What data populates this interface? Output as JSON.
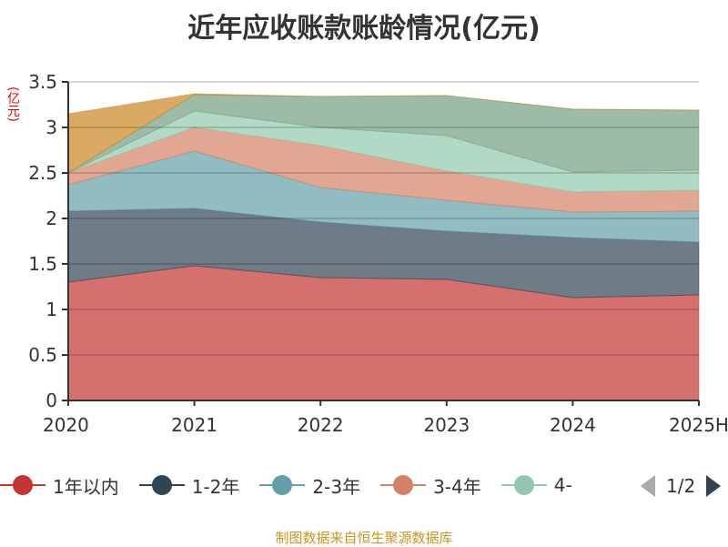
{
  "chart_data": {
    "type": "area",
    "stacked": true,
    "title": "近年应收账款账龄情况(亿元)",
    "ylabel": "(亿元)",
    "categories": [
      "2020",
      "2021",
      "2022",
      "2023",
      "2024",
      "2025H"
    ],
    "ylim": [
      0,
      3.5
    ],
    "yticks": [
      "0",
      "0.5",
      "1",
      "1.5",
      "2",
      "2.5",
      "3",
      "3.5"
    ],
    "grid": true,
    "legend_position": "bottom",
    "series": [
      {
        "name": "1年以内",
        "color": "#c23531",
        "values": [
          1.3,
          1.48,
          1.35,
          1.33,
          1.13,
          1.16
        ]
      },
      {
        "name": "1-2年",
        "color": "#2f4554",
        "values": [
          0.78,
          0.63,
          0.61,
          0.53,
          0.66,
          0.58
        ]
      },
      {
        "name": "2-3年",
        "color": "#61a0a8",
        "values": [
          0.29,
          0.63,
          0.38,
          0.34,
          0.28,
          0.34
        ]
      },
      {
        "name": "3-4年",
        "color": "#d48265",
        "values": [
          0.13,
          0.26,
          0.46,
          0.32,
          0.22,
          0.23
        ]
      },
      {
        "name": "4-",
        "color": "#91c7ae",
        "values": [
          0.0,
          0.18,
          0.2,
          0.39,
          0.22,
          0.22
        ]
      },
      {
        "color": "#749f83",
        "values": [
          0.0,
          0.18,
          0.34,
          0.44,
          0.69,
          0.66
        ]
      },
      {
        "color": "#ca8622",
        "values": [
          0.65,
          0.01,
          0.0,
          0.0,
          0.0,
          0.0
        ]
      }
    ]
  },
  "legend": {
    "page": "1/2"
  },
  "source": "制图数据来自恒生聚源数据库"
}
